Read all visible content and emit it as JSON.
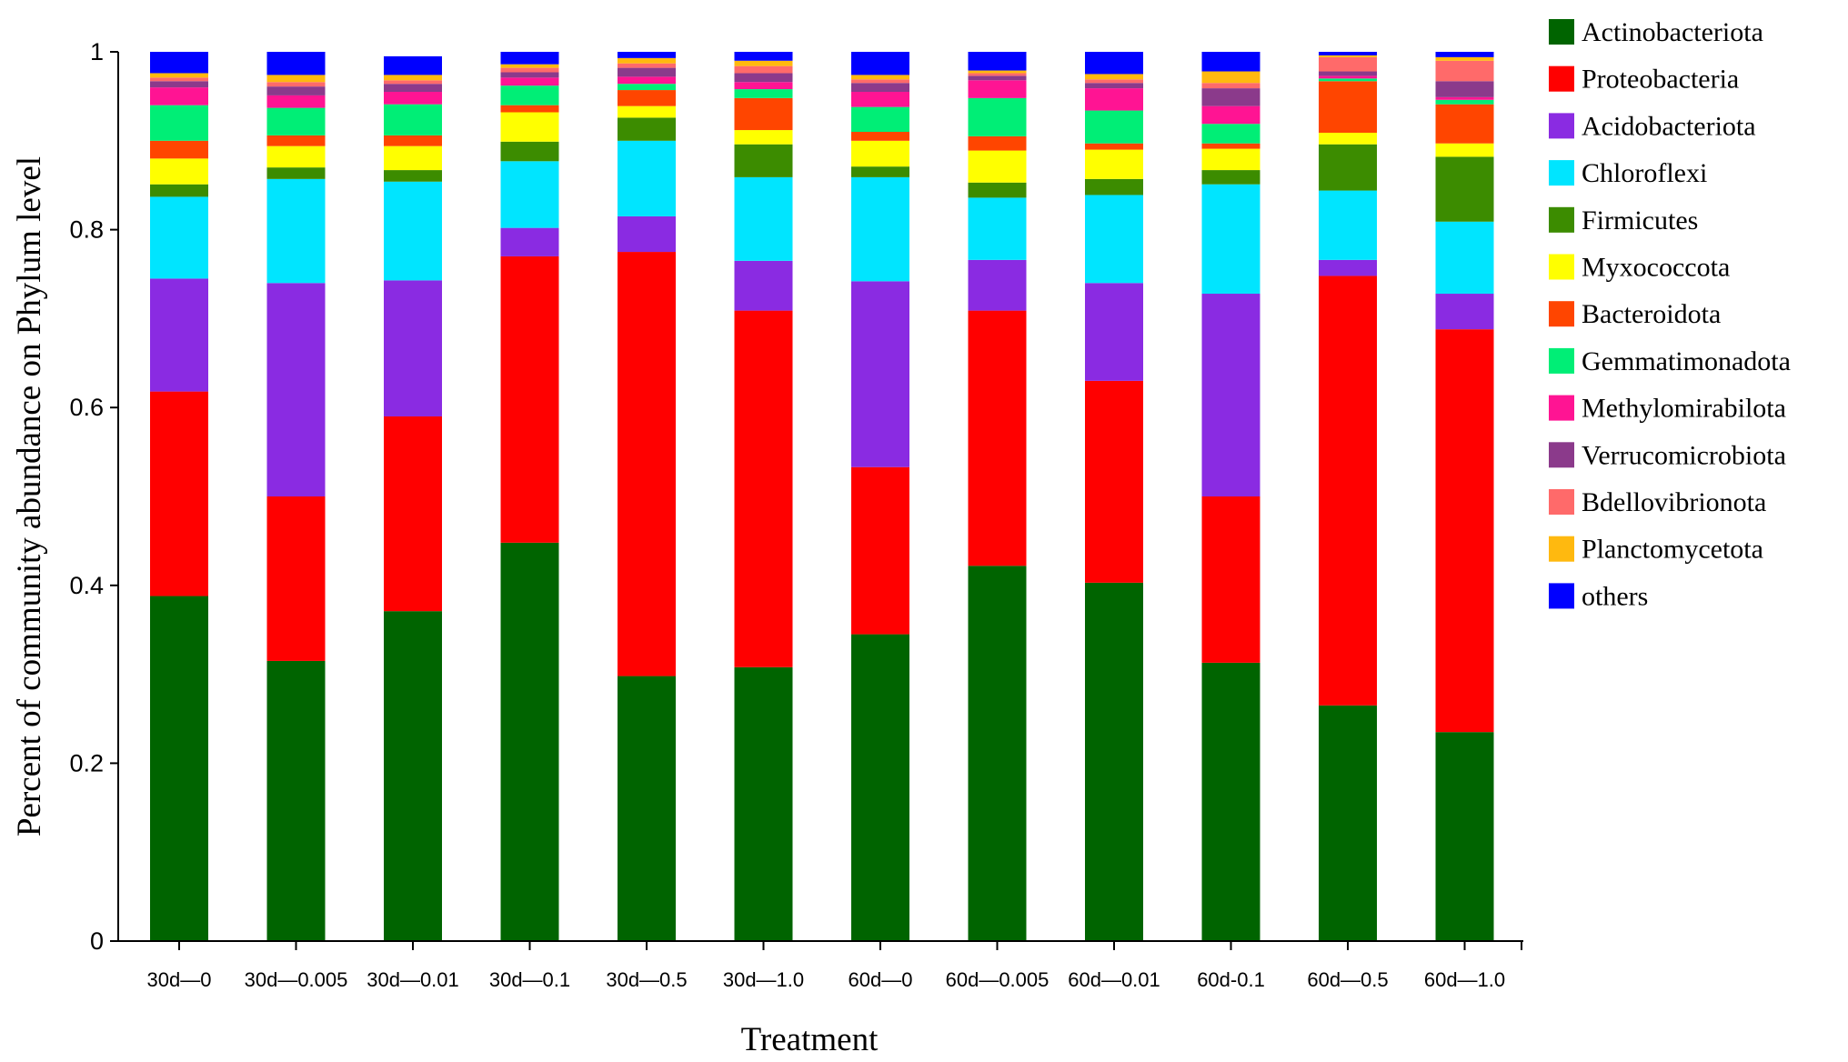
{
  "chart_data": {
    "type": "bar",
    "stacked": true,
    "xlabel": "Treatment",
    "ylabel": "Percent of community abundance on Phylum level",
    "ylim": [
      0,
      1
    ],
    "yticks": [
      0,
      0.2,
      0.4,
      0.6,
      0.8,
      1
    ],
    "ytick_labels": [
      "0",
      "0.2",
      "0.4",
      "0.6",
      "0.8",
      "1"
    ],
    "grid": false,
    "legend_position": "right",
    "categories": [
      "30d—0",
      "30d—0.005",
      "30d—0.01",
      "30d—0.1",
      "30d—0.5",
      "30d—1.0",
      "60d—0",
      "60d—0.005",
      "60d—0.01",
      "60d-0.1",
      "60d—0.5",
      "60d—1.0"
    ],
    "series": [
      {
        "name": "Actinobacteriota",
        "color": "#006400",
        "values": [
          0.388,
          0.315,
          0.371,
          0.448,
          0.298,
          0.308,
          0.345,
          0.422,
          0.403,
          0.313,
          0.265,
          0.235
        ]
      },
      {
        "name": "Proteobacteria",
        "color": "#ff0000",
        "values": [
          0.23,
          0.185,
          0.219,
          0.322,
          0.477,
          0.401,
          0.188,
          0.287,
          0.227,
          0.187,
          0.483,
          0.453
        ]
      },
      {
        "name": "Acidobacteriota",
        "color": "#8a2be2",
        "values": [
          0.127,
          0.24,
          0.153,
          0.032,
          0.04,
          0.056,
          0.209,
          0.057,
          0.11,
          0.228,
          0.018,
          0.04
        ]
      },
      {
        "name": "Chloroflexi",
        "color": "#00e5ff",
        "values": [
          0.092,
          0.117,
          0.111,
          0.075,
          0.085,
          0.094,
          0.117,
          0.07,
          0.099,
          0.123,
          0.078,
          0.081
        ]
      },
      {
        "name": "Firmicutes",
        "color": "#3c8c00",
        "values": [
          0.014,
          0.013,
          0.013,
          0.022,
          0.026,
          0.037,
          0.012,
          0.017,
          0.018,
          0.016,
          0.052,
          0.073
        ]
      },
      {
        "name": "Myxococcota",
        "color": "#ffff00",
        "values": [
          0.029,
          0.024,
          0.027,
          0.033,
          0.013,
          0.016,
          0.029,
          0.036,
          0.033,
          0.024,
          0.013,
          0.015
        ]
      },
      {
        "name": "Bacteroidota",
        "color": "#ff4500",
        "values": [
          0.02,
          0.012,
          0.012,
          0.008,
          0.018,
          0.036,
          0.01,
          0.016,
          0.007,
          0.006,
          0.058,
          0.044
        ]
      },
      {
        "name": "Gemmatimonadota",
        "color": "#00ee76",
        "values": [
          0.04,
          0.031,
          0.035,
          0.022,
          0.007,
          0.01,
          0.028,
          0.043,
          0.037,
          0.022,
          0.003,
          0.005
        ]
      },
      {
        "name": "Methylomirabilota",
        "color": "#ff1493",
        "values": [
          0.02,
          0.014,
          0.014,
          0.009,
          0.008,
          0.008,
          0.017,
          0.02,
          0.025,
          0.02,
          0.003,
          0.003
        ]
      },
      {
        "name": "Verrucomicrobiota",
        "color": "#8b3a8b",
        "values": [
          0.007,
          0.01,
          0.009,
          0.006,
          0.01,
          0.01,
          0.01,
          0.005,
          0.006,
          0.02,
          0.005,
          0.018
        ]
      },
      {
        "name": "Bdellovibrionota",
        "color": "#ff6a6a",
        "values": [
          0.004,
          0.005,
          0.004,
          0.005,
          0.005,
          0.008,
          0.004,
          0.003,
          0.004,
          0.006,
          0.016,
          0.023
        ]
      },
      {
        "name": "Planctomycetota",
        "color": "#ffb90f",
        "values": [
          0.005,
          0.008,
          0.006,
          0.004,
          0.006,
          0.006,
          0.005,
          0.003,
          0.006,
          0.013,
          0.002,
          0.004
        ]
      },
      {
        "name": "others",
        "color": "#0000ff",
        "values": [
          0.024,
          0.026,
          0.021,
          0.019,
          0.007,
          0.01,
          0.026,
          0.021,
          0.025,
          0.022,
          0.004,
          0.007
        ]
      }
    ]
  }
}
